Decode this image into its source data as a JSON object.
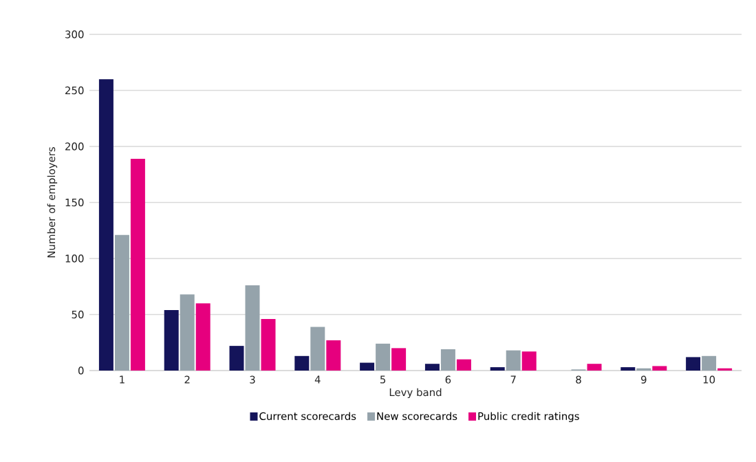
{
  "chart_data": {
    "type": "bar",
    "xlabel": "Levy band",
    "ylabel": "Number of employers",
    "categories": [
      "1",
      "2",
      "3",
      "4",
      "5",
      "6",
      "7",
      "8",
      "9",
      "10"
    ],
    "series": [
      {
        "name": "Current scorecards",
        "color": "#14145a",
        "values": [
          260,
          54,
          22,
          13,
          7,
          6,
          3,
          0,
          3,
          12
        ]
      },
      {
        "name": "New scorecards",
        "color": "#95a3ab",
        "values": [
          121,
          68,
          76,
          39,
          24,
          19,
          18,
          1,
          2,
          13
        ]
      },
      {
        "name": "Public credit ratings",
        "color": "#e6007e",
        "values": [
          189,
          60,
          46,
          27,
          20,
          10,
          17,
          6,
          4,
          2
        ]
      }
    ],
    "ylim": [
      0,
      300
    ],
    "yticks": [
      0,
      50,
      100,
      150,
      200,
      250,
      300
    ],
    "grid": "y",
    "legend": "bottom"
  }
}
